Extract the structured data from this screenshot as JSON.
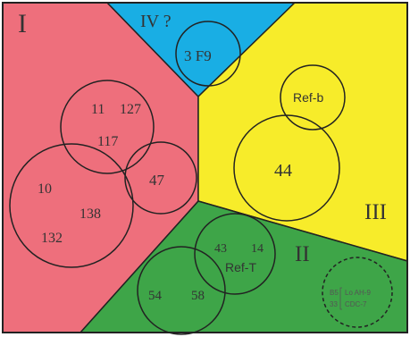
{
  "regions": {
    "I": {
      "label": "I",
      "color": "#ee6f7c"
    },
    "II": {
      "label": "II",
      "color": "#3ea548"
    },
    "III": {
      "label": "III",
      "color": "#f7ec2a"
    },
    "IV": {
      "label": "IV ?",
      "color": "#19aee4"
    }
  },
  "clusters": {
    "c3f9": {
      "label": "3 F9"
    },
    "c11": {
      "labels": [
        "11",
        "127",
        "117"
      ]
    },
    "c47": {
      "label": "47"
    },
    "c10": {
      "labels": [
        "10",
        "138",
        "132"
      ]
    },
    "crefb": {
      "label": "Ref-b"
    },
    "c44": {
      "label": "44"
    },
    "creft": {
      "labels": [
        "43",
        "14",
        "Ref-T"
      ]
    },
    "c54": {
      "labels": [
        "54",
        "58"
      ]
    },
    "dashed": {
      "labels": [
        "B5",
        "Lo AH-9",
        "33",
        "CDC-7"
      ]
    }
  }
}
